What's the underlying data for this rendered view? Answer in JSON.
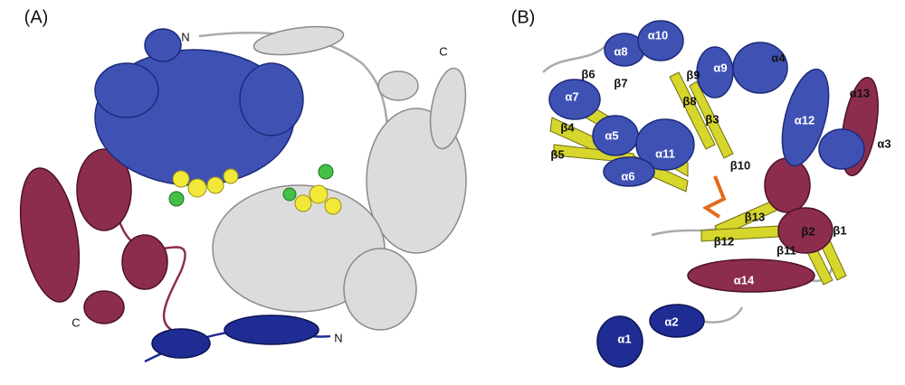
{
  "panel_a": {
    "label": "(A)",
    "annotations": [
      "N",
      "C",
      "C",
      "N"
    ]
  },
  "panel_b": {
    "label": "(B)",
    "annotations": [
      "α8",
      "α10",
      "β9",
      "α9",
      "α4",
      "β6",
      "β7",
      "β8",
      "α7",
      "β3",
      "α13",
      "α12",
      "α3",
      "β4",
      "α5",
      "β5",
      "α11",
      "α6",
      "β10",
      "β13",
      "β2",
      "β1",
      "β12",
      "β11",
      "α14",
      "α2",
      "α1"
    ]
  }
}
